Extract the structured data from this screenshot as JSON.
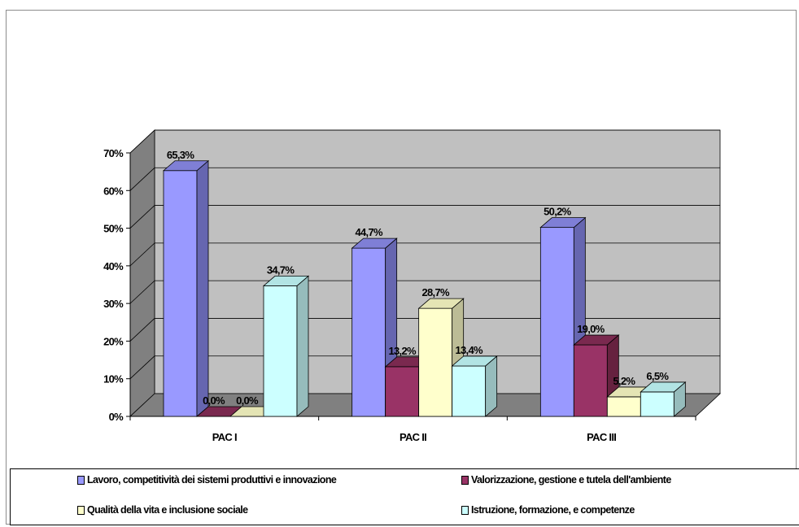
{
  "chart_data": {
    "type": "bar",
    "three_d": true,
    "categories": [
      "PAC I",
      "PAC II",
      "PAC III"
    ],
    "series": [
      {
        "name": "Lavoro, competitività dei sistemi produttivi e innovazione",
        "values": [
          65.3,
          44.7,
          50.2
        ],
        "color": "#9999ff",
        "side": "#6666b0",
        "top": "#7f7fd6"
      },
      {
        "name": "Valorizzazione, gestione e tutela dell'ambiente",
        "values": [
          0.0,
          13.2,
          19.0
        ],
        "color": "#993366",
        "side": "#66223f",
        "top": "#7a294f"
      },
      {
        "name": "Qualità della vita e inclusione sociale",
        "values": [
          0.0,
          28.7,
          5.2
        ],
        "color": "#ffffcc",
        "side": "#bcbc96",
        "top": "#e4e4b4"
      },
      {
        "name": "Istruzione, formazione, e competenze",
        "values": [
          34.7,
          13.4,
          6.5
        ],
        "color": "#ccffff",
        "side": "#96bcbc",
        "top": "#b2e4e4"
      }
    ],
    "data_labels": [
      [
        "65,3%",
        "44,7%",
        "50,2%"
      ],
      [
        "0,0%",
        "13,2%",
        "19,0%"
      ],
      [
        "0,0%",
        "28,7%",
        "5,2%"
      ],
      [
        "34,7%",
        "13,4%",
        "6,5%"
      ]
    ],
    "yticks": [
      "0%",
      "10%",
      "20%",
      "30%",
      "40%",
      "50%",
      "60%",
      "70%"
    ],
    "ylim": [
      0,
      70
    ],
    "grid": true,
    "legend_position": "bottom",
    "wall_color": "#c0c0c0",
    "floor_color": "#808080"
  }
}
